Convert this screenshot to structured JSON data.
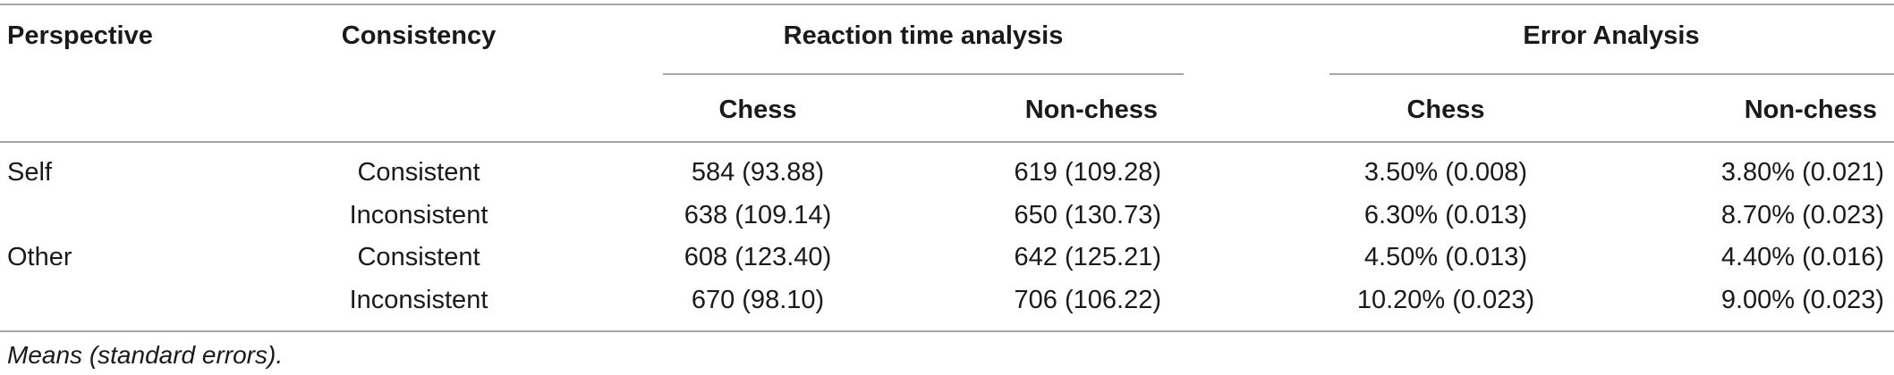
{
  "table": {
    "headers": {
      "perspective": "Perspective",
      "consistency": "Consistency",
      "reaction_time": "Reaction time analysis",
      "error_analysis": "Error Analysis",
      "rt_chess": "Chess",
      "rt_nonchess": "Non-chess",
      "err_chess": "Chess",
      "err_nonchess": "Non-chess"
    },
    "rows": [
      {
        "perspective": "Self",
        "consistency": "Consistent",
        "rt_chess": "584 (93.88)",
        "rt_nonchess": "619 (109.28)",
        "err_chess": "3.50% (0.008)",
        "err_nonchess": "3.80% (0.021)"
      },
      {
        "perspective": "",
        "consistency": "Inconsistent",
        "rt_chess": "638 (109.14)",
        "rt_nonchess": "650 (130.73)",
        "err_chess": "6.30% (0.013)",
        "err_nonchess": "8.70% (0.023)"
      },
      {
        "perspective": "Other",
        "consistency": "Consistent",
        "rt_chess": "608 (123.40)",
        "rt_nonchess": "642 (125.21)",
        "err_chess": "4.50% (0.013)",
        "err_nonchess": "4.40% (0.016)"
      },
      {
        "perspective": "",
        "consistency": "Inconsistent",
        "rt_chess": "670 (98.10)",
        "rt_nonchess": "706 (106.22)",
        "err_chess": "10.20% (0.023)",
        "err_nonchess": "9.00% (0.023)"
      }
    ],
    "footnote": "Means (standard errors)."
  }
}
